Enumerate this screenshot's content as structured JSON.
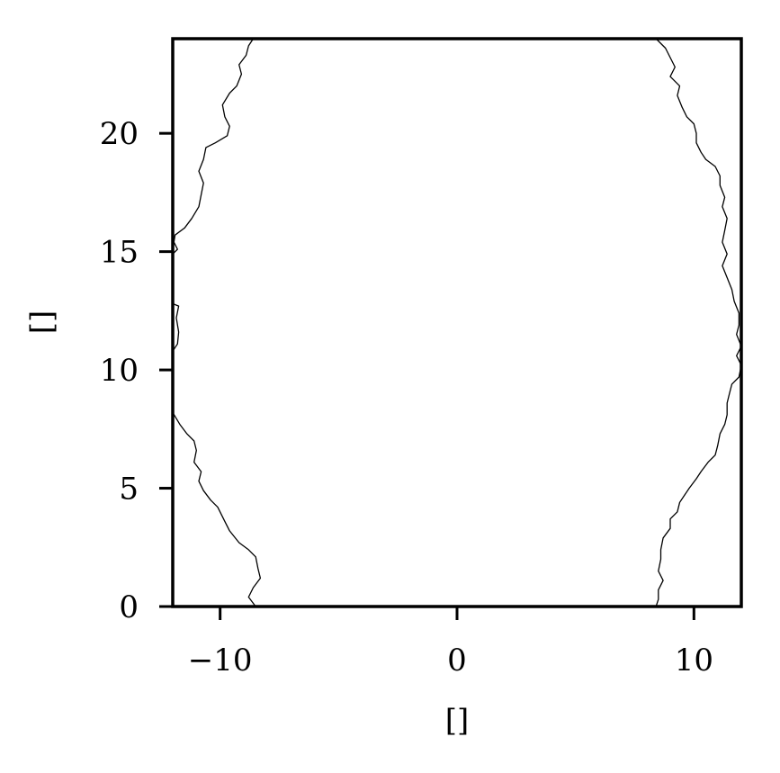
{
  "chart_data": {
    "type": "line",
    "title": "",
    "xlabel": "[]",
    "ylabel": "[]",
    "xlim": [
      -12,
      12
    ],
    "ylim": [
      0,
      24
    ],
    "grid": false,
    "xticks": [
      -10,
      0,
      10
    ],
    "xtick_labels": [
      "−10",
      "0",
      "10"
    ],
    "yticks": [
      0,
      5,
      10,
      15,
      20
    ],
    "ytick_labels": [
      "0",
      "5",
      "10",
      "15",
      "20"
    ],
    "series": [
      {
        "values": [
          [
            -8.5,
            0.0
          ],
          [
            -8.8,
            0.4
          ],
          [
            -8.6,
            0.8
          ],
          [
            -8.3,
            1.2
          ],
          [
            -8.4,
            1.6
          ],
          [
            -8.5,
            2.1
          ],
          [
            -8.8,
            2.4
          ],
          [
            -9.2,
            2.7
          ],
          [
            -9.6,
            3.2
          ],
          [
            -9.8,
            3.6
          ],
          [
            -10.1,
            4.2
          ],
          [
            -10.4,
            4.5
          ],
          [
            -10.7,
            4.9
          ],
          [
            -10.9,
            5.3
          ],
          [
            -10.8,
            5.7
          ],
          [
            -11.1,
            6.1
          ],
          [
            -11.0,
            6.6
          ],
          [
            -11.1,
            7.0
          ],
          [
            -11.4,
            7.3
          ],
          [
            -11.7,
            7.7
          ],
          [
            -12.0,
            8.2
          ]
        ]
      },
      {
        "values": [
          [
            -12.0,
            10.8
          ],
          [
            -11.8,
            11.1
          ],
          [
            -11.75,
            11.6
          ],
          [
            -11.85,
            12.2
          ],
          [
            -11.75,
            12.7
          ],
          [
            -12.0,
            12.8
          ]
        ]
      },
      {
        "values": [
          [
            -12.0,
            14.9
          ],
          [
            -11.8,
            15.1
          ],
          [
            -11.95,
            15.4
          ],
          [
            -11.9,
            15.7
          ],
          [
            -11.5,
            16.0
          ],
          [
            -11.2,
            16.4
          ],
          [
            -10.9,
            16.9
          ],
          [
            -10.8,
            17.4
          ],
          [
            -10.7,
            17.9
          ],
          [
            -10.9,
            18.4
          ],
          [
            -10.7,
            18.9
          ],
          [
            -10.6,
            19.4
          ],
          [
            -10.2,
            19.6
          ],
          [
            -9.7,
            19.9
          ],
          [
            -9.6,
            20.3
          ],
          [
            -9.8,
            20.7
          ],
          [
            -9.9,
            21.2
          ],
          [
            -9.6,
            21.7
          ],
          [
            -9.3,
            22.0
          ],
          [
            -9.1,
            22.5
          ],
          [
            -9.2,
            22.9
          ],
          [
            -8.9,
            23.3
          ],
          [
            -8.8,
            23.7
          ],
          [
            -8.6,
            24.0
          ]
        ]
      },
      {
        "values": [
          [
            8.4,
            24.0
          ],
          [
            8.8,
            23.6
          ],
          [
            9.0,
            23.2
          ],
          [
            9.2,
            22.8
          ],
          [
            9.0,
            22.4
          ],
          [
            9.4,
            22.0
          ],
          [
            9.3,
            21.6
          ],
          [
            9.5,
            21.1
          ],
          [
            9.7,
            20.7
          ],
          [
            10.0,
            20.4
          ],
          [
            10.1,
            20.0
          ],
          [
            10.1,
            19.6
          ],
          [
            10.3,
            19.2
          ],
          [
            10.5,
            18.9
          ],
          [
            10.9,
            18.6
          ],
          [
            11.1,
            18.2
          ],
          [
            11.1,
            17.8
          ],
          [
            11.3,
            17.3
          ],
          [
            11.2,
            16.9
          ],
          [
            11.4,
            16.4
          ],
          [
            11.3,
            15.9
          ],
          [
            11.2,
            15.4
          ],
          [
            11.4,
            14.9
          ],
          [
            11.2,
            14.4
          ],
          [
            11.4,
            13.9
          ],
          [
            11.6,
            13.4
          ],
          [
            11.7,
            12.9
          ],
          [
            11.9,
            12.4
          ],
          [
            11.9,
            11.9
          ],
          [
            11.8,
            11.5
          ],
          [
            12.0,
            11.0
          ],
          [
            11.8,
            10.6
          ],
          [
            12.0,
            10.2
          ],
          [
            11.9,
            9.7
          ],
          [
            11.6,
            9.4
          ],
          [
            11.5,
            9.0
          ],
          [
            11.4,
            8.6
          ],
          [
            11.4,
            8.1
          ],
          [
            11.3,
            7.7
          ],
          [
            11.1,
            7.3
          ],
          [
            11.0,
            6.8
          ],
          [
            10.9,
            6.4
          ],
          [
            10.6,
            6.1
          ],
          [
            10.3,
            5.7
          ],
          [
            10.1,
            5.4
          ],
          [
            9.8,
            5.0
          ],
          [
            9.6,
            4.7
          ],
          [
            9.4,
            4.4
          ],
          [
            9.3,
            4.0
          ],
          [
            9.0,
            3.7
          ],
          [
            9.0,
            3.3
          ],
          [
            8.7,
            2.9
          ],
          [
            8.6,
            2.4
          ],
          [
            8.6,
            2.0
          ],
          [
            8.5,
            1.5
          ],
          [
            8.7,
            1.1
          ],
          [
            8.5,
            0.7
          ],
          [
            8.5,
            0.3
          ],
          [
            8.4,
            0.0
          ]
        ]
      }
    ]
  }
}
